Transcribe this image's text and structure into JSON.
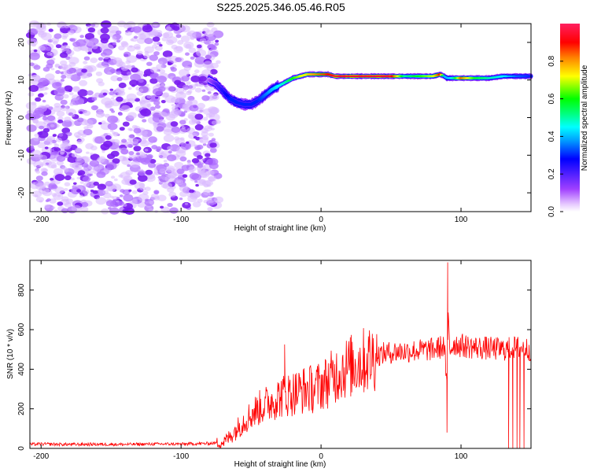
{
  "title": "S225.2025.346.05.46.R05",
  "chart_data": [
    {
      "type": "heatmap",
      "name": "spectrogram",
      "xlabel": "Height of straight line (km)",
      "ylabel": "Frequency (Hz)",
      "xlim": [
        -208,
        150
      ],
      "ylim": [
        -25,
        25
      ],
      "xticks": [
        -200,
        -100,
        0,
        100
      ],
      "yticks": [
        -20,
        -10,
        0,
        10,
        20
      ],
      "noise_region_x": [
        -208,
        -73
      ],
      "ridge": {
        "x": [
          -80,
          -75,
          -70,
          -65,
          -60,
          -55,
          -50,
          -45,
          -40,
          -35,
          -30,
          -25,
          -20,
          -15,
          -10,
          -5,
          0,
          5,
          10,
          20,
          30,
          40,
          50,
          60,
          70,
          80,
          85,
          88,
          90,
          95,
          100,
          110,
          120,
          130,
          140,
          150
        ],
        "freq": [
          10,
          9,
          7,
          5,
          4,
          3.5,
          3.5,
          4.5,
          6,
          7.5,
          8.5,
          9.5,
          10.5,
          11,
          11.5,
          11.5,
          11.5,
          11.5,
          11,
          11,
          11,
          11,
          11,
          11,
          11,
          11,
          11.5,
          11,
          10.5,
          10.5,
          10.5,
          10.5,
          10.5,
          11,
          11,
          11
        ],
        "amplitude": [
          0.1,
          0.2,
          0.25,
          0.3,
          0.3,
          0.3,
          0.3,
          0.3,
          0.35,
          0.4,
          0.45,
          0.5,
          0.6,
          0.7,
          0.75,
          0.8,
          0.85,
          0.9,
          0.95,
          0.95,
          0.95,
          0.95,
          0.95,
          0.5,
          0.6,
          0.7,
          0.9,
          0.4,
          0.4,
          0.5,
          0.85,
          0.6,
          0.5,
          0.45,
          0.35,
          0.3
        ]
      },
      "colorbar": {
        "label": "Normalized spectral amplitude",
        "range": [
          0,
          1
        ],
        "ticks": [
          "0.0",
          "0.2",
          "0.4",
          "0.6",
          "0.8"
        ]
      }
    },
    {
      "type": "line",
      "name": "snr",
      "xlabel": "Height of straight line (km)",
      "ylabel": "SNR (10 * v/v)",
      "xlim": [
        -208,
        150
      ],
      "ylim": [
        0,
        950
      ],
      "xticks": [
        -200,
        -100,
        0,
        100
      ],
      "yticks": [
        0,
        200,
        400,
        600,
        800
      ],
      "series_color": "#ff0000",
      "x": [
        -208,
        -200,
        -180,
        -160,
        -140,
        -120,
        -100,
        -80,
        -70,
        -65,
        -60,
        -55,
        -50,
        -45,
        -40,
        -35,
        -30,
        -25,
        -20,
        -15,
        -10,
        -5,
        0,
        5,
        10,
        15,
        20,
        25,
        30,
        35,
        40,
        45,
        50,
        55,
        60,
        70,
        80,
        85,
        88,
        90,
        91,
        92,
        95,
        100,
        110,
        120,
        130,
        140,
        150
      ],
      "y": [
        20,
        22,
        20,
        21,
        20,
        22,
        22,
        25,
        30,
        60,
        100,
        140,
        170,
        200,
        220,
        240,
        260,
        270,
        280,
        290,
        300,
        300,
        320,
        340,
        370,
        400,
        410,
        430,
        440,
        455,
        470,
        480,
        485,
        490,
        490,
        495,
        500,
        510,
        520,
        300,
        700,
        500,
        530,
        520,
        510,
        505,
        500,
        510,
        500
      ],
      "spikes": [
        {
          "x": -26,
          "y": 525
        },
        {
          "x": 90.5,
          "y": 940
        },
        {
          "x": 90,
          "y": 80
        },
        {
          "x": 134,
          "y": 0
        },
        {
          "x": 137,
          "y": 0
        },
        {
          "x": 140,
          "y": 0
        },
        {
          "x": 142,
          "y": 0
        },
        {
          "x": 145,
          "y": 0
        }
      ]
    }
  ]
}
